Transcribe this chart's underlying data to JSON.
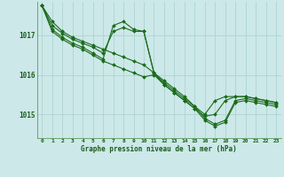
{
  "background_color": "#cce8e8",
  "line_color": "#1a6b1a",
  "grid_color": "#aacfcf",
  "axis_label_color": "#1a5c1a",
  "xlabel": "Graphe pression niveau de la mer (hPa)",
  "xlim": [
    -0.5,
    23.5
  ],
  "ylim": [
    1014.4,
    1017.85
  ],
  "yticks": [
    1015,
    1016,
    1017
  ],
  "xticks": [
    0,
    1,
    2,
    3,
    4,
    5,
    6,
    7,
    8,
    9,
    10,
    11,
    12,
    13,
    14,
    15,
    16,
    17,
    18,
    19,
    20,
    21,
    22,
    23
  ],
  "series": [
    [
      1017.75,
      1017.35,
      1017.1,
      1016.95,
      1016.85,
      1016.75,
      1016.65,
      1016.55,
      1016.45,
      1016.35,
      1016.25,
      1016.05,
      1015.85,
      1015.65,
      1015.45,
      1015.2,
      1015.0,
      1015.35,
      1015.45,
      1015.45,
      1015.45,
      1015.4,
      1015.35,
      1015.3
    ],
    [
      1017.75,
      1017.25,
      1017.05,
      1016.9,
      1016.8,
      1016.7,
      1016.55,
      1017.1,
      1017.2,
      1017.1,
      1017.1,
      1016.05,
      1015.8,
      1015.6,
      1015.4,
      1015.2,
      1014.9,
      1014.75,
      1014.85,
      1015.35,
      1015.4,
      1015.35,
      1015.3,
      1015.25
    ],
    [
      1017.75,
      1017.15,
      1016.95,
      1016.8,
      1016.7,
      1016.55,
      1016.4,
      1017.25,
      1017.35,
      1017.15,
      1017.1,
      1016.05,
      1015.75,
      1015.55,
      1015.35,
      1015.15,
      1014.85,
      1014.7,
      1014.8,
      1015.3,
      1015.35,
      1015.3,
      1015.25,
      1015.2
    ],
    [
      1017.75,
      1017.1,
      1016.9,
      1016.75,
      1016.65,
      1016.5,
      1016.35,
      1016.25,
      1016.15,
      1016.05,
      1015.95,
      1016.0,
      1015.75,
      1015.55,
      1015.35,
      1015.15,
      1014.95,
      1015.0,
      1015.35,
      1015.45,
      1015.45,
      1015.4,
      1015.35,
      1015.3
    ]
  ]
}
